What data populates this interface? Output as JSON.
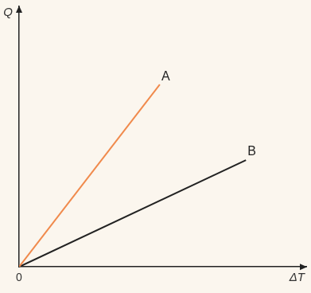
{
  "chart_data": {
    "type": "line",
    "x_label": "ΔT",
    "y_label": "Q",
    "xlim": [
      0,
      10
    ],
    "ylim": [
      0,
      10
    ],
    "xticks": [
      0
    ],
    "yticks": [],
    "tick_labels": "x",
    "grid": false,
    "series": [
      {
        "name": "A",
        "color": "#f08a4c",
        "x": [
          0,
          4.9
        ],
        "values": [
          0,
          7.0
        ]
      },
      {
        "name": "B",
        "color": "#222222",
        "x": [
          0,
          7.9
        ],
        "values": [
          0,
          4.1
        ]
      }
    ]
  }
}
